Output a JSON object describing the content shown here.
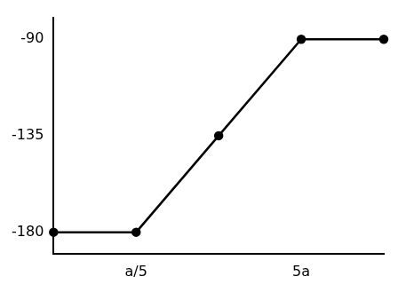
{
  "chart_data": {
    "type": "line",
    "categories": [
      null,
      "a/5",
      null,
      "5a",
      null
    ],
    "values": [
      -180,
      -180,
      -135,
      -90,
      -90
    ],
    "color": "#000000",
    "marker": "circle",
    "ylim": [
      -190,
      -80
    ],
    "yticks": [
      -180,
      -135,
      -90
    ],
    "grid": false
  }
}
